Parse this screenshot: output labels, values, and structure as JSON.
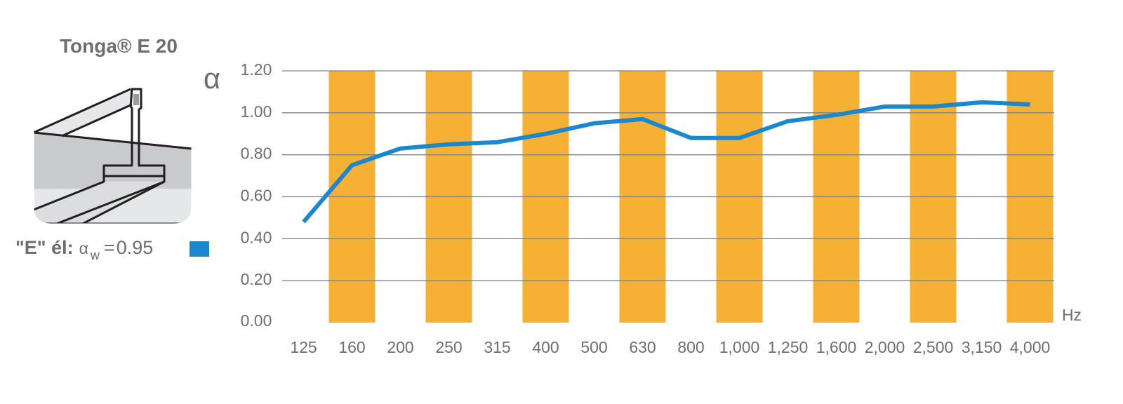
{
  "panel": {
    "title": "Tonga® E 20",
    "legend": {
      "label": "\"E\" él:",
      "symbol": "α",
      "subscript": "w",
      "equals": "=",
      "value": "0.95",
      "color": "#1b87cc"
    }
  },
  "chart_data": {
    "type": "line",
    "ylabel": "α",
    "xunit": "Hz",
    "categories": [
      "125",
      "160",
      "200",
      "250",
      "315",
      "400",
      "500",
      "630",
      "800",
      "1,000",
      "1,250",
      "1,600",
      "2,000",
      "2,500",
      "3,150",
      "4,000"
    ],
    "yticks": [
      "0.00",
      "0.20",
      "0.40",
      "0.60",
      "0.80",
      "1.00",
      "1.20"
    ],
    "ylim": [
      0,
      1.2
    ],
    "grid": true,
    "band_color": "#f6b034",
    "line_color": "#1b87cc",
    "series": [
      {
        "values": [
          0.48,
          0.75,
          0.83,
          0.85,
          0.86,
          0.9,
          0.95,
          0.97,
          0.88,
          0.88,
          0.96,
          0.99,
          1.03,
          1.03,
          1.05,
          1.04
        ]
      }
    ]
  }
}
